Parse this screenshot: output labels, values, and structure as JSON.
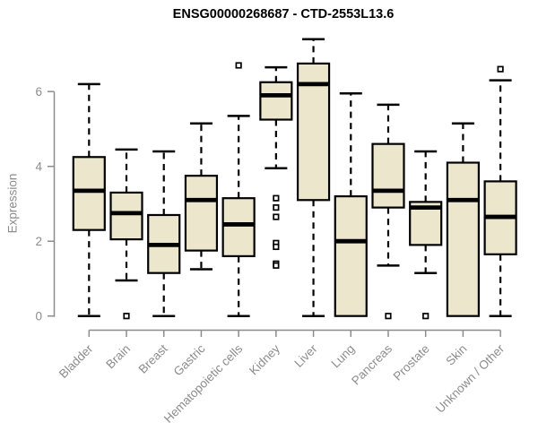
{
  "chart_data": {
    "type": "boxplot",
    "title": "ENSG00000268687 - CTD-2553L13.6",
    "ylabel": "Expression",
    "xlabel": "",
    "yticks": [
      0,
      2,
      4,
      6
    ],
    "ylim": [
      -0.2,
      7.6
    ],
    "grid": false,
    "legend": "none",
    "categories": [
      "Bladder",
      "Brain",
      "Breast",
      "Gastric",
      "Hematopoietic cells",
      "Kidney",
      "Liver",
      "Lung",
      "Pancreas",
      "Prostate",
      "Skin",
      "Unknown / Other"
    ],
    "boxes": [
      {
        "category": "Bladder",
        "whisker_low": 0.0,
        "q1": 2.3,
        "median": 3.35,
        "q3": 4.25,
        "whisker_high": 6.2,
        "outliers": []
      },
      {
        "category": "Brain",
        "whisker_low": 0.95,
        "q1": 2.05,
        "median": 2.75,
        "q3": 3.3,
        "whisker_high": 4.45,
        "outliers": [
          0
        ]
      },
      {
        "category": "Breast",
        "whisker_low": 0.0,
        "q1": 1.15,
        "median": 1.9,
        "q3": 2.7,
        "whisker_high": 4.4,
        "outliers": []
      },
      {
        "category": "Gastric",
        "whisker_low": 1.25,
        "q1": 1.75,
        "median": 3.1,
        "q3": 3.75,
        "whisker_high": 5.15,
        "outliers": []
      },
      {
        "category": "Hematopoietic cells",
        "whisker_low": 0.0,
        "q1": 1.6,
        "median": 2.45,
        "q3": 3.15,
        "whisker_high": 5.35,
        "outliers": [
          6.7
        ]
      },
      {
        "category": "Kidney",
        "whisker_low": 3.95,
        "q1": 5.25,
        "median": 5.9,
        "q3": 6.25,
        "whisker_high": 6.65,
        "outliers": [
          3.15,
          2.9,
          2.65,
          1.95,
          1.85,
          1.4,
          1.35
        ]
      },
      {
        "category": "Liver",
        "whisker_low": 0.0,
        "q1": 3.1,
        "median": 6.2,
        "q3": 6.75,
        "whisker_high": 7.4,
        "outliers": []
      },
      {
        "category": "Lung",
        "whisker_low": 0.0,
        "q1": 0.0,
        "median": 2.0,
        "q3": 3.2,
        "whisker_high": 5.95,
        "outliers": []
      },
      {
        "category": "Pancreas",
        "whisker_low": 1.35,
        "q1": 2.9,
        "median": 3.35,
        "q3": 4.6,
        "whisker_high": 5.65,
        "outliers": [
          0
        ]
      },
      {
        "category": "Prostate",
        "whisker_low": 1.15,
        "q1": 1.9,
        "median": 2.9,
        "q3": 3.05,
        "whisker_high": 4.4,
        "outliers": [
          0
        ]
      },
      {
        "category": "Skin",
        "whisker_low": 0.0,
        "q1": 0.0,
        "median": 3.1,
        "q3": 4.1,
        "whisker_high": 5.15,
        "outliers": []
      },
      {
        "category": "Unknown / Other",
        "whisker_low": 0.0,
        "q1": 1.65,
        "median": 2.65,
        "q3": 3.6,
        "whisker_high": 6.3,
        "outliers": [
          6.6
        ]
      }
    ],
    "colors": {
      "box_fill": "#ECE7CC",
      "box_border": "#000000",
      "median": "#000000",
      "whisker": "#000000",
      "axis": "#8C8C8C",
      "tick_text": "#8C8C8C",
      "title": "#000000",
      "background": "#FFFFFF"
    }
  }
}
